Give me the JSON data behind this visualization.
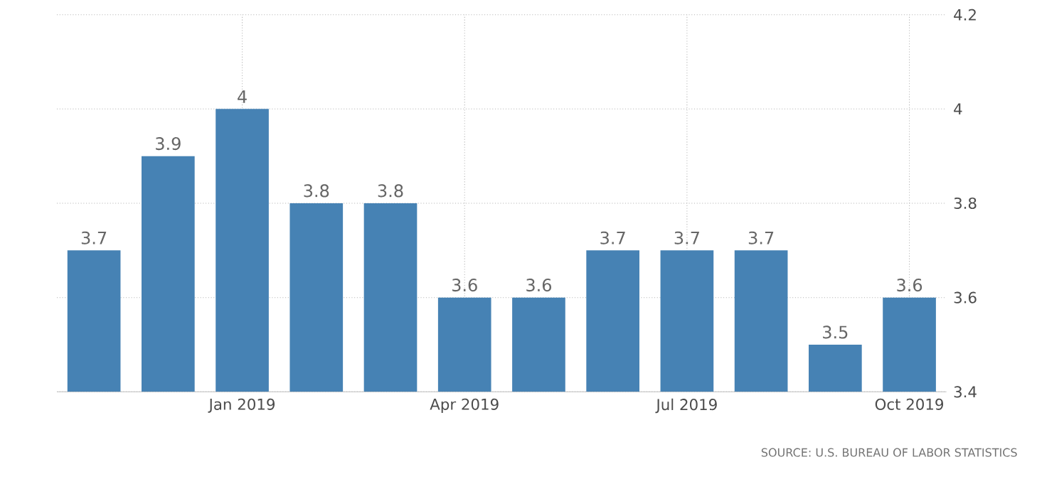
{
  "chart_data": {
    "type": "bar",
    "categories": [
      null,
      null,
      "Jan 2019",
      null,
      null,
      "Apr 2019",
      null,
      null,
      "Jul 2019",
      null,
      null,
      "Oct 2019"
    ],
    "values": [
      3.7,
      3.9,
      4,
      3.8,
      3.8,
      3.6,
      3.6,
      3.7,
      3.7,
      3.7,
      3.5,
      3.6
    ],
    "value_labels": [
      "3.7",
      "3.9",
      "4",
      "3.8",
      "3.8",
      "3.6",
      "3.6",
      "3.7",
      "3.7",
      "3.7",
      "3.5",
      "3.6"
    ],
    "color": "#4682b4",
    "ylim": [
      3.4,
      4.2
    ],
    "yticks": [
      3.4,
      3.6,
      3.8,
      4,
      4.2
    ],
    "grid": true,
    "annotations": [
      "SOURCE: U.S. BUREAU OF LABOR STATISTICS"
    ]
  }
}
